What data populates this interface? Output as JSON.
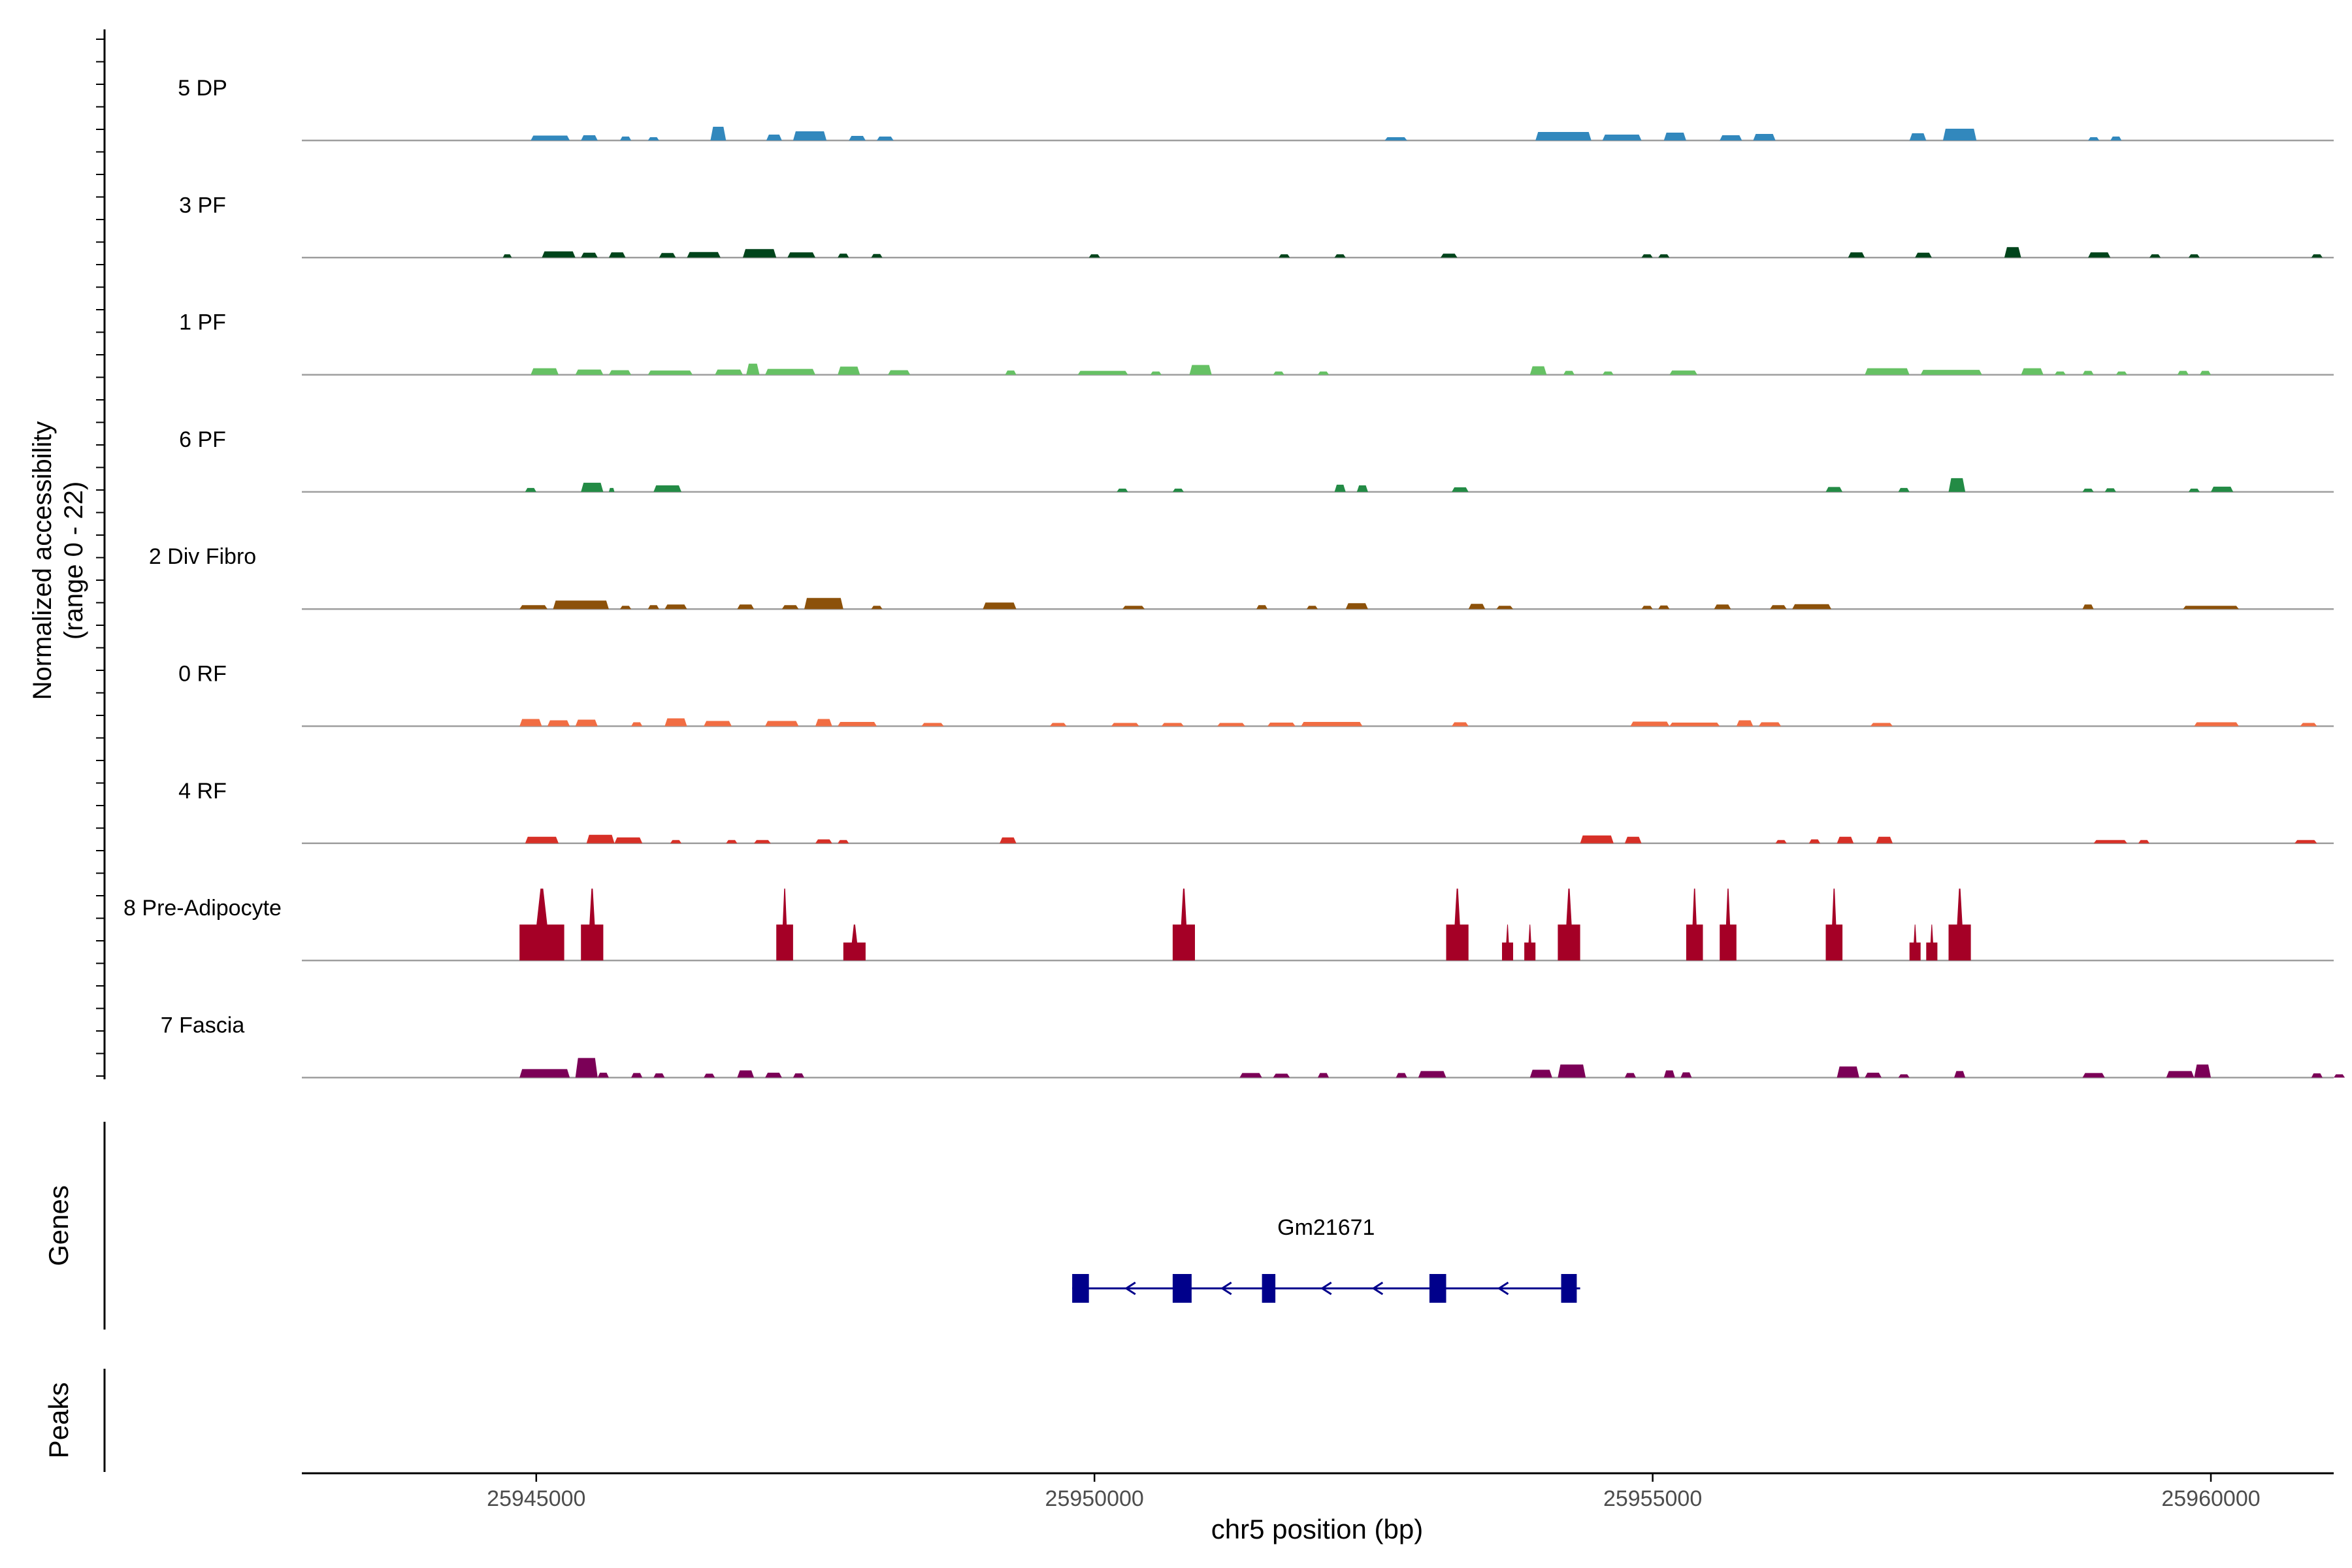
{
  "chart_data": {
    "type": "area",
    "title": "",
    "chromosome": "chr5",
    "xlabel": "chr5 position (bp)",
    "ylabel_line1": "Normalized accessibility",
    "ylabel_line2": "(range 0 - 22)",
    "y_range": [
      0,
      22
    ],
    "x_range": [
      25942900,
      25961100
    ],
    "x_ticks": [
      25945000,
      25950000,
      25955000,
      25960000
    ],
    "x_tick_labels": [
      "25945000",
      "25950000",
      "25955000",
      "25960000"
    ],
    "grid": false,
    "tracks": [
      {
        "name": "5 DP",
        "color": "#3288bd",
        "peaks": [
          [
            25944950,
            25945300,
            1.5
          ],
          [
            25945400,
            25945550,
            1.6
          ],
          [
            25945750,
            25945850,
            1.2
          ],
          [
            25946000,
            25946100,
            1.0
          ],
          [
            25946560,
            25946700,
            4.2
          ],
          [
            25947060,
            25947200,
            1.8
          ],
          [
            25947300,
            25947600,
            2.8
          ],
          [
            25947800,
            25947950,
            1.4
          ],
          [
            25948050,
            25948200,
            1.2
          ],
          [
            25952600,
            25952800,
            1.0
          ],
          [
            25953950,
            25954450,
            2.6
          ],
          [
            25954550,
            25954900,
            1.8
          ],
          [
            25955100,
            25955300,
            2.4
          ],
          [
            25955600,
            25955800,
            1.6
          ],
          [
            25955900,
            25956100,
            2.0
          ],
          [
            25957300,
            25957450,
            2.2
          ],
          [
            25957600,
            25957900,
            3.6
          ],
          [
            25958900,
            25959000,
            1.0
          ],
          [
            25959100,
            25959200,
            1.2
          ]
        ]
      },
      {
        "name": "3 PF",
        "color": "#00441b",
        "peaks": [
          [
            25944700,
            25944780,
            1.0
          ],
          [
            25945050,
            25945350,
            1.9
          ],
          [
            25945400,
            25945550,
            1.5
          ],
          [
            25945650,
            25945800,
            1.6
          ],
          [
            25946100,
            25946250,
            1.4
          ],
          [
            25946350,
            25946650,
            1.7
          ],
          [
            25946850,
            25947150,
            2.6
          ],
          [
            25947250,
            25947500,
            1.6
          ],
          [
            25947700,
            25947800,
            1.2
          ],
          [
            25948000,
            25948100,
            1.1
          ],
          [
            25949950,
            25950050,
            1.0
          ],
          [
            25951650,
            25951750,
            1.0
          ],
          [
            25952150,
            25952250,
            1.0
          ],
          [
            25953100,
            25953250,
            1.2
          ],
          [
            25954900,
            25955000,
            1.0
          ],
          [
            25955050,
            25955150,
            1.0
          ],
          [
            25956750,
            25956900,
            1.6
          ],
          [
            25957350,
            25957500,
            1.5
          ],
          [
            25958150,
            25958300,
            3.2
          ],
          [
            25958900,
            25959100,
            1.6
          ],
          [
            25959450,
            25959550,
            1.0
          ],
          [
            25959800,
            25959900,
            1.0
          ],
          [
            25960900,
            25961000,
            1.0
          ]
        ]
      },
      {
        "name": "1 PF",
        "color": "#66c164",
        "peaks": [
          [
            25944950,
            25945200,
            2.0
          ],
          [
            25945350,
            25945600,
            1.6
          ],
          [
            25945650,
            25945850,
            1.4
          ],
          [
            25946000,
            25946400,
            1.3
          ],
          [
            25946600,
            25946850,
            1.6
          ],
          [
            25946880,
            25947000,
            3.4
          ],
          [
            25947050,
            25947500,
            1.8
          ],
          [
            25947700,
            25947900,
            2.5
          ],
          [
            25948150,
            25948350,
            1.4
          ],
          [
            25949200,
            25949300,
            1.3
          ],
          [
            25949850,
            25950300,
            1.2
          ],
          [
            25950500,
            25950600,
            1.0
          ],
          [
            25950850,
            25951050,
            3.0
          ],
          [
            25951600,
            25951700,
            1.0
          ],
          [
            25952000,
            25952100,
            1.0
          ],
          [
            25953900,
            25954050,
            2.6
          ],
          [
            25954200,
            25954300,
            1.2
          ],
          [
            25954550,
            25954650,
            1.0
          ],
          [
            25955150,
            25955400,
            1.3
          ],
          [
            25956900,
            25957300,
            2.0
          ],
          [
            25957400,
            25957950,
            1.5
          ],
          [
            25958300,
            25958500,
            2.0
          ],
          [
            25958600,
            25958700,
            1.0
          ],
          [
            25958850,
            25958950,
            1.2
          ],
          [
            25959150,
            25959250,
            1.0
          ],
          [
            25959700,
            25959800,
            1.2
          ],
          [
            25959900,
            25960000,
            1.2
          ]
        ]
      },
      {
        "name": "6 PF",
        "color": "#238b45",
        "peaks": [
          [
            25944900,
            25945000,
            1.2
          ],
          [
            25945400,
            25945600,
            2.8
          ],
          [
            25945650,
            25945700,
            1.2
          ],
          [
            25946050,
            25946300,
            2.0
          ],
          [
            25950200,
            25950300,
            1.0
          ],
          [
            25950700,
            25950800,
            1.0
          ],
          [
            25952150,
            25952250,
            2.2
          ],
          [
            25952350,
            25952450,
            2.0
          ],
          [
            25953200,
            25953350,
            1.4
          ],
          [
            25956550,
            25956700,
            1.5
          ],
          [
            25957200,
            25957300,
            1.2
          ],
          [
            25957650,
            25957800,
            4.2
          ],
          [
            25958850,
            25958950,
            1.0
          ],
          [
            25959050,
            25959150,
            1.1
          ],
          [
            25959800,
            25959900,
            1.0
          ],
          [
            25960000,
            25960200,
            1.6
          ]
        ]
      },
      {
        "name": "2 Div Fibro",
        "color": "#8c510a",
        "peaks": [
          [
            25944850,
            25945100,
            1.2
          ],
          [
            25945150,
            25945650,
            2.6
          ],
          [
            25945750,
            25945850,
            1.0
          ],
          [
            25946000,
            25946100,
            1.2
          ],
          [
            25946150,
            25946350,
            1.4
          ],
          [
            25946800,
            25946950,
            1.4
          ],
          [
            25947200,
            25947350,
            1.2
          ],
          [
            25947400,
            25947750,
            3.4
          ],
          [
            25948000,
            25948100,
            1.0
          ],
          [
            25949000,
            25949300,
            2.0
          ],
          [
            25950250,
            25950450,
            1.0
          ],
          [
            25951450,
            25951550,
            1.2
          ],
          [
            25951900,
            25952000,
            1.0
          ],
          [
            25952250,
            25952450,
            1.8
          ],
          [
            25953350,
            25953500,
            1.6
          ],
          [
            25953600,
            25953750,
            1.0
          ],
          [
            25954900,
            25955000,
            1.0
          ],
          [
            25955050,
            25955150,
            1.1
          ],
          [
            25955550,
            25955700,
            1.4
          ],
          [
            25956050,
            25956200,
            1.2
          ],
          [
            25956250,
            25956600,
            1.5
          ],
          [
            25958850,
            25958950,
            1.4
          ],
          [
            25959750,
            25960250,
            1.0
          ]
        ]
      },
      {
        "name": "0 RF",
        "color": "#f16d43",
        "peaks": [
          [
            25944850,
            25945050,
            2.2
          ],
          [
            25945100,
            25945300,
            1.8
          ],
          [
            25945350,
            25945550,
            2.0
          ],
          [
            25945850,
            25945950,
            1.2
          ],
          [
            25946150,
            25946350,
            2.4
          ],
          [
            25946500,
            25946750,
            1.6
          ],
          [
            25947050,
            25947350,
            1.6
          ],
          [
            25947500,
            25947650,
            2.2
          ],
          [
            25947700,
            25948050,
            1.3
          ],
          [
            25948450,
            25948650,
            1.0
          ],
          [
            25949600,
            25949750,
            1.0
          ],
          [
            25950150,
            25950400,
            1.0
          ],
          [
            25950600,
            25950800,
            1.0
          ],
          [
            25951100,
            25951350,
            1.0
          ],
          [
            25951550,
            25951800,
            1.1
          ],
          [
            25951850,
            25952400,
            1.3
          ],
          [
            25953200,
            25953350,
            1.2
          ],
          [
            25954800,
            25955150,
            1.4
          ],
          [
            25955150,
            25955600,
            1.1
          ],
          [
            25955750,
            25955900,
            1.8
          ],
          [
            25955950,
            25956150,
            1.2
          ],
          [
            25956950,
            25957150,
            1.0
          ],
          [
            25959850,
            25960250,
            1.2
          ],
          [
            25960800,
            25960950,
            1.0
          ]
        ]
      },
      {
        "name": "4 RF",
        "color": "#d73027",
        "peaks": [
          [
            25944900,
            25945200,
            2.0
          ],
          [
            25945450,
            25945700,
            2.6
          ],
          [
            25945700,
            25945950,
            1.8
          ],
          [
            25946200,
            25946300,
            1.0
          ],
          [
            25946700,
            25946800,
            1.0
          ],
          [
            25946950,
            25947100,
            1.0
          ],
          [
            25947500,
            25947650,
            1.2
          ],
          [
            25947700,
            25947800,
            1.0
          ],
          [
            25949150,
            25949300,
            1.8
          ],
          [
            25954350,
            25954650,
            2.4
          ],
          [
            25954750,
            25954900,
            2.0
          ],
          [
            25956100,
            25956200,
            1.0
          ],
          [
            25956400,
            25956500,
            1.2
          ],
          [
            25956650,
            25956800,
            2.0
          ],
          [
            25957000,
            25957150,
            2.0
          ],
          [
            25958950,
            25959250,
            1.0
          ],
          [
            25959350,
            25959450,
            1.0
          ],
          [
            25960750,
            25960950,
            1.0
          ]
        ]
      },
      {
        "name": "8 Pre-Adipocyte",
        "color": "#a50026",
        "peaks": [
          [
            25944850,
            25945250,
            22
          ],
          [
            25945400,
            25945600,
            22
          ],
          [
            25947150,
            25947300,
            22
          ],
          [
            25947750,
            25947950,
            11
          ],
          [
            25950700,
            25950900,
            22
          ],
          [
            25953150,
            25953350,
            22
          ],
          [
            25953650,
            25953750,
            11
          ],
          [
            25953850,
            25953950,
            11
          ],
          [
            25954150,
            25954350,
            22
          ],
          [
            25955300,
            25955450,
            22
          ],
          [
            25955600,
            25955750,
            22
          ],
          [
            25956550,
            25956700,
            22
          ],
          [
            25957300,
            25957400,
            11
          ],
          [
            25957450,
            25957550,
            11
          ],
          [
            25957650,
            25957850,
            22
          ]
        ]
      },
      {
        "name": "7 Fascia",
        "color": "#7b0057",
        "peaks": [
          [
            25944850,
            25945300,
            2.6
          ],
          [
            25945350,
            25945550,
            6.0
          ],
          [
            25945550,
            25945650,
            1.5
          ],
          [
            25945850,
            25945950,
            1.4
          ],
          [
            25946050,
            25946150,
            1.3
          ],
          [
            25946500,
            25946600,
            1.2
          ],
          [
            25946800,
            25946950,
            2.2
          ],
          [
            25947050,
            25947200,
            1.5
          ],
          [
            25947300,
            25947400,
            1.3
          ],
          [
            25951300,
            25951500,
            1.4
          ],
          [
            25951600,
            25951750,
            1.2
          ],
          [
            25952000,
            25952100,
            1.4
          ],
          [
            25952700,
            25952800,
            1.4
          ],
          [
            25952900,
            25953150,
            2.0
          ],
          [
            25953900,
            25954100,
            2.4
          ],
          [
            25954150,
            25954400,
            4.0
          ],
          [
            25954750,
            25954850,
            1.4
          ],
          [
            25955100,
            25955200,
            2.2
          ],
          [
            25955250,
            25955350,
            1.6
          ],
          [
            25956650,
            25956850,
            3.4
          ],
          [
            25956900,
            25957050,
            1.5
          ],
          [
            25957200,
            25957300,
            1.0
          ],
          [
            25957700,
            25957800,
            2.0
          ],
          [
            25958850,
            25959050,
            1.4
          ],
          [
            25959600,
            25959850,
            2.0
          ],
          [
            25959850,
            25960000,
            4.0
          ],
          [
            25960900,
            25961000,
            1.3
          ],
          [
            25961100,
            25961200,
            1.0
          ]
        ]
      }
    ],
    "genes_panel_label": "Genes",
    "peaks_panel_label": "Peaks",
    "gene": {
      "name": "Gm21671",
      "color": "#00008b",
      "start": 25949800,
      "end": 25954350,
      "strand": "-",
      "exons": [
        [
          25949800,
          25949950
        ],
        [
          25950700,
          25950870
        ],
        [
          25951500,
          25951620
        ],
        [
          25953000,
          25953150
        ],
        [
          25954180,
          25954320
        ]
      ]
    }
  }
}
